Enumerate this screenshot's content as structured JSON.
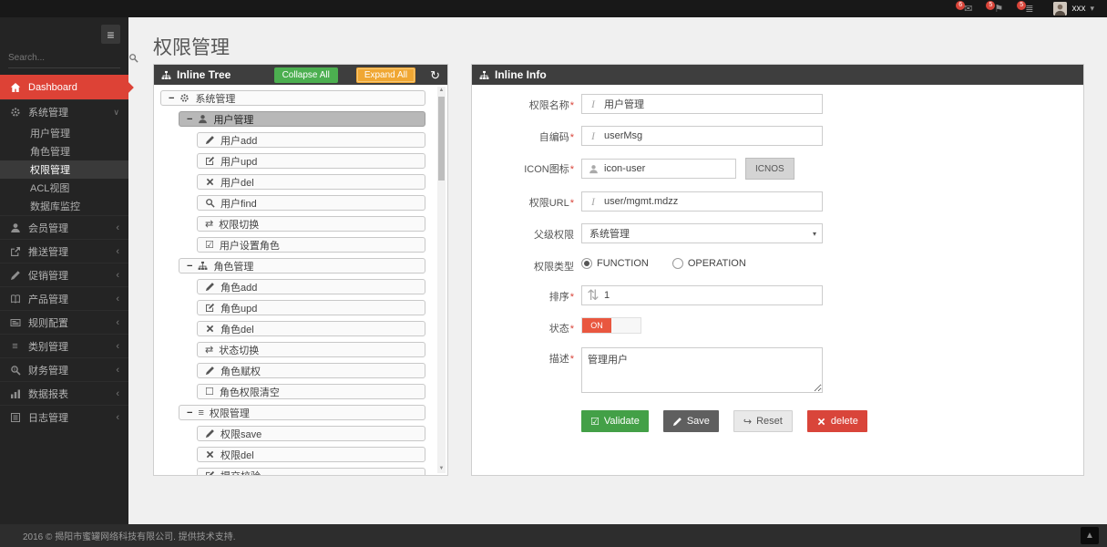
{
  "topbar": {
    "notifications": [
      {
        "icon": "envelope-icon",
        "count": "6"
      },
      {
        "icon": "flag-icon",
        "count": "5"
      },
      {
        "icon": "tasks-icon",
        "count": "5"
      }
    ],
    "user": {
      "name": "xxx"
    }
  },
  "sidebar": {
    "search_placeholder": "Search...",
    "menu": [
      {
        "label": "Dashboard",
        "icon": "home-icon",
        "type": "dashboard"
      },
      {
        "label": "系统管理",
        "icon": "gear-icon",
        "type": "expanded",
        "children": [
          {
            "label": "用户管理",
            "active": false
          },
          {
            "label": "角色管理",
            "active": false
          },
          {
            "label": "权限管理",
            "active": true
          },
          {
            "label": "ACL视图",
            "active": false
          },
          {
            "label": "数据库监控",
            "active": false
          }
        ]
      },
      {
        "label": "会员管理",
        "icon": "user-icon",
        "type": "collapsed"
      },
      {
        "label": "推送管理",
        "icon": "send-icon",
        "type": "collapsed"
      },
      {
        "label": "促销管理",
        "icon": "pencil-icon",
        "type": "collapsed"
      },
      {
        "label": "产品管理",
        "icon": "book-icon",
        "type": "collapsed"
      },
      {
        "label": "规则配置",
        "icon": "newspaper-icon",
        "type": "collapsed"
      },
      {
        "label": "类别管理",
        "icon": "list-icon",
        "type": "collapsed"
      },
      {
        "label": "财务管理",
        "icon": "finance-icon",
        "type": "collapsed"
      },
      {
        "label": "数据报表",
        "icon": "chart-icon",
        "type": "collapsed"
      },
      {
        "label": "日志管理",
        "icon": "log-icon",
        "type": "collapsed"
      }
    ]
  },
  "page": {
    "title": "权限管理"
  },
  "tree_panel": {
    "title": "Inline Tree",
    "collapse_all_label": "Collapse All",
    "expand_all_label": "Expand All",
    "rows": [
      {
        "level": 0,
        "toggle": "−",
        "icon": "gear-icon",
        "label": "系统管理",
        "selected": false
      },
      {
        "level": 1,
        "toggle": "−",
        "icon": "user-icon",
        "label": "用户管理",
        "selected": true
      },
      {
        "level": 2,
        "icon": "pencil-icon",
        "label": "用户add",
        "selected": false
      },
      {
        "level": 2,
        "icon": "edit-icon",
        "label": "用户upd",
        "selected": false
      },
      {
        "level": 2,
        "icon": "x-icon",
        "label": "用户del",
        "selected": false
      },
      {
        "level": 2,
        "icon": "search-icon",
        "label": "用户find",
        "selected": false
      },
      {
        "level": 2,
        "icon": "retweet-icon",
        "label": "权限切换",
        "selected": false
      },
      {
        "level": 2,
        "icon": "check-square-icon",
        "label": "用户设置角色",
        "selected": false
      },
      {
        "level": 1,
        "toggle": "−",
        "icon": "sitemap-icon",
        "label": "角色管理",
        "selected": false
      },
      {
        "level": 2,
        "icon": "pencil-icon",
        "label": "角色add",
        "selected": false
      },
      {
        "level": 2,
        "icon": "edit-icon",
        "label": "角色upd",
        "selected": false
      },
      {
        "level": 2,
        "icon": "x-icon",
        "label": "角色del",
        "selected": false
      },
      {
        "level": 2,
        "icon": "retweet-icon",
        "label": "状态切换",
        "selected": false
      },
      {
        "level": 2,
        "icon": "pencil-icon",
        "label": "角色赋权",
        "selected": false
      },
      {
        "level": 2,
        "icon": "square-icon",
        "label": "角色权限清空",
        "selected": false
      },
      {
        "level": 1,
        "toggle": "−",
        "icon": "list-icon",
        "label": "权限管理",
        "selected": false
      },
      {
        "level": 2,
        "icon": "pencil-icon",
        "label": "权限save",
        "selected": false
      },
      {
        "level": 2,
        "icon": "x-icon",
        "label": "权限del",
        "selected": false
      },
      {
        "level": 2,
        "icon": "edit-icon",
        "label": "提交校验",
        "selected": false
      }
    ]
  },
  "info_panel": {
    "title": "Inline Info",
    "fields": [
      {
        "name": "permission-name",
        "label": "权限名称",
        "required": true,
        "type": "text",
        "icon": "italic-icon",
        "value": "用户管理"
      },
      {
        "name": "self-code",
        "label": "自编码",
        "required": true,
        "type": "text",
        "icon": "italic-icon",
        "value": "userMsg"
      },
      {
        "name": "icon-field",
        "label": "ICON图标",
        "required": true,
        "type": "text-button",
        "icon": "user-icon",
        "value": "icon-user",
        "button_label": "ICNOS"
      },
      {
        "name": "permission-url",
        "label": "权限URL",
        "required": true,
        "type": "text",
        "icon": "italic-icon",
        "value": "user/mgmt.mdzz"
      },
      {
        "name": "parent-permission",
        "label": "父级权限",
        "required": false,
        "type": "select",
        "value": "系统管理"
      },
      {
        "name": "permission-type",
        "label": "权限类型",
        "required": false,
        "type": "radio",
        "options": [
          {
            "label": "FUNCTION",
            "checked": true
          },
          {
            "label": "OPERATION",
            "checked": false
          }
        ]
      },
      {
        "name": "sort-order",
        "label": "排序",
        "required": true,
        "type": "text",
        "icon": "sort-icon",
        "value": "1"
      },
      {
        "name": "status",
        "label": "状态",
        "required": true,
        "type": "toggle",
        "value": "ON"
      },
      {
        "name": "description",
        "label": "描述",
        "required": true,
        "type": "textarea",
        "value": "管理用户"
      }
    ],
    "buttons": [
      {
        "label": "Validate",
        "icon": "check-square-icon",
        "style": "green"
      },
      {
        "label": "Save",
        "icon": "pencil-icon",
        "style": "dark"
      },
      {
        "label": "Reset",
        "icon": "reply-icon",
        "style": "light"
      },
      {
        "label": "delete",
        "icon": "x-icon",
        "style": "red"
      }
    ]
  },
  "footer": {
    "text": "2016 © 揭阳市蜜罐网络科技有限公司. 提供技术支持."
  },
  "colors": {
    "accent_red": "#dd4236",
    "header_dark": "#3e3e3e",
    "collapse_green": "#4caf50",
    "expand_orange": "#f0a733",
    "save_dark": "#5f5f5f",
    "delete_red": "#d9453a",
    "toggle_on_red": "#e9573f"
  }
}
